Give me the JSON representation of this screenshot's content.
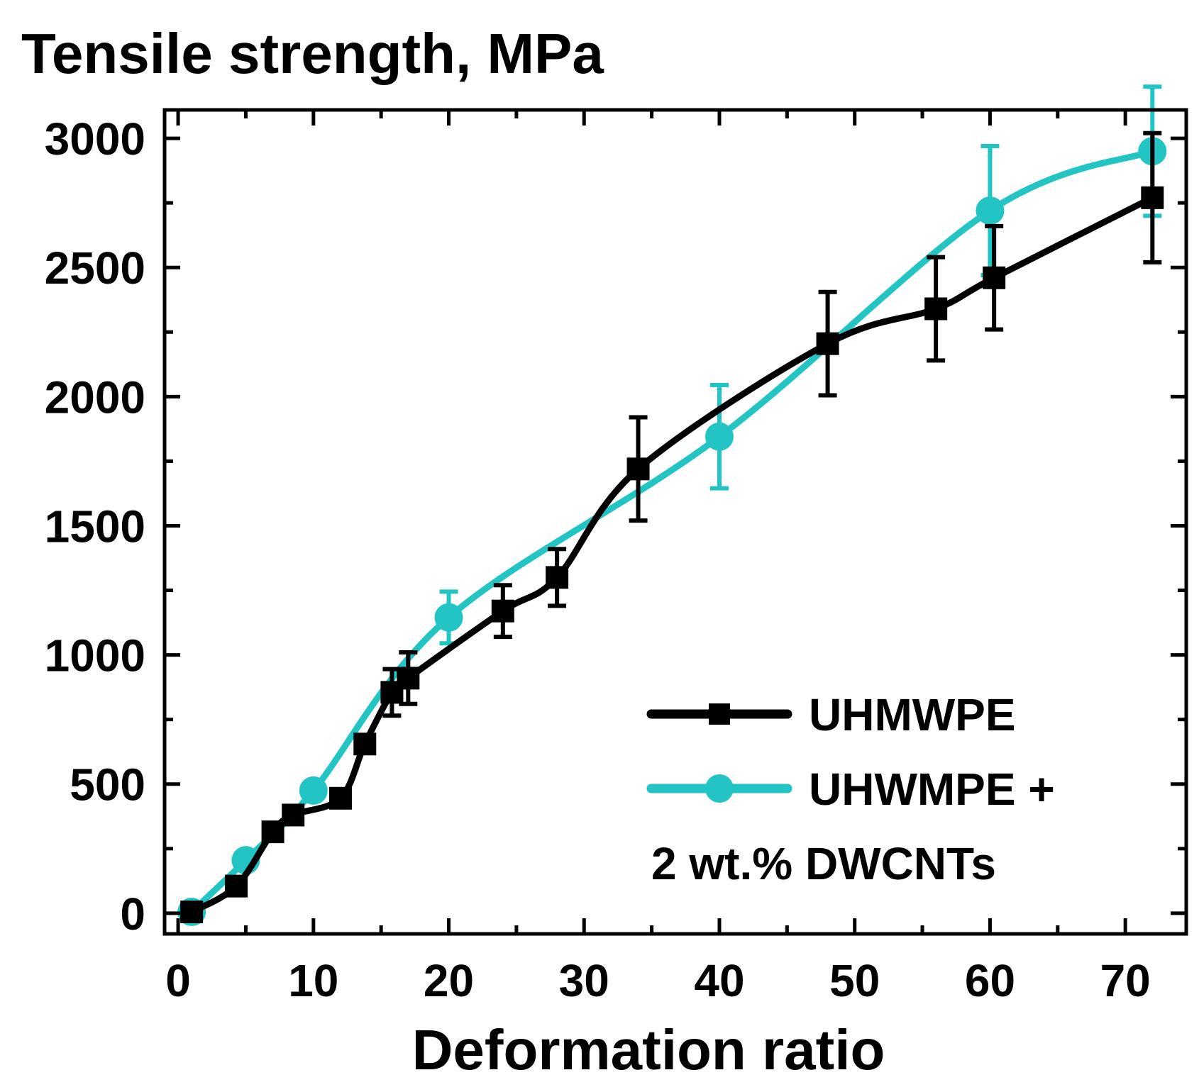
{
  "chart_data": {
    "type": "line",
    "title": "Tensile strength, MPa",
    "xlabel": "Deformation ratio",
    "ylabel": "Tensile strength, MPa",
    "xlim": [
      -1,
      74.5
    ],
    "ylim": [
      -80,
      3110
    ],
    "xticks": [
      0,
      10,
      20,
      30,
      40,
      50,
      60,
      70
    ],
    "xtick_labels": [
      "0",
      "10",
      "20",
      "30",
      "40",
      "50",
      "60",
      "70"
    ],
    "yticks": [
      0,
      500,
      1000,
      1500,
      2000,
      2500,
      3000
    ],
    "ytick_labels": [
      "0",
      "500",
      "1000",
      "1500",
      "2000",
      "2500",
      "3000"
    ],
    "legend": {
      "position": "bottom-right",
      "labels": [
        "UHMWPE",
        "UHWMPE +",
        "2 wt.% DWCNTs"
      ]
    },
    "series": [
      {
        "name": "UHMWPE",
        "color": "#000000",
        "marker": "square",
        "points": [
          {
            "x": 1,
            "y": 5,
            "err": 15
          },
          {
            "x": 4.3,
            "y": 105,
            "err": 20
          },
          {
            "x": 7,
            "y": 315,
            "err": 20
          },
          {
            "x": 8.5,
            "y": 380,
            "err": 20
          },
          {
            "x": 12,
            "y": 445,
            "err": 20
          },
          {
            "x": 13.8,
            "y": 655,
            "err": 20
          },
          {
            "x": 15.8,
            "y": 855,
            "err": 90
          },
          {
            "x": 17,
            "y": 910,
            "err": 100
          },
          {
            "x": 24,
            "y": 1170,
            "err": 100
          },
          {
            "x": 28,
            "y": 1300,
            "err": 110
          },
          {
            "x": 34,
            "y": 1720,
            "err": 200
          },
          {
            "x": 48,
            "y": 2205,
            "err": 200
          },
          {
            "x": 56,
            "y": 2340,
            "err": 200
          },
          {
            "x": 60.3,
            "y": 2460,
            "err": 200
          },
          {
            "x": 72,
            "y": 2770,
            "err": 250
          }
        ]
      },
      {
        "name": "UHWMPE + 2 wt.% DWCNTs",
        "color": "#22c4c4",
        "marker": "circle",
        "points": [
          {
            "x": 1,
            "y": 5,
            "err": 15
          },
          {
            "x": 5,
            "y": 205,
            "err": 15
          },
          {
            "x": 10,
            "y": 475,
            "err": 15
          },
          {
            "x": 20,
            "y": 1145,
            "err": 100
          },
          {
            "x": 40,
            "y": 1845,
            "err": 200
          },
          {
            "x": 60,
            "y": 2720,
            "err": 250
          },
          {
            "x": 72,
            "y": 2950,
            "err": 250
          }
        ]
      }
    ]
  }
}
